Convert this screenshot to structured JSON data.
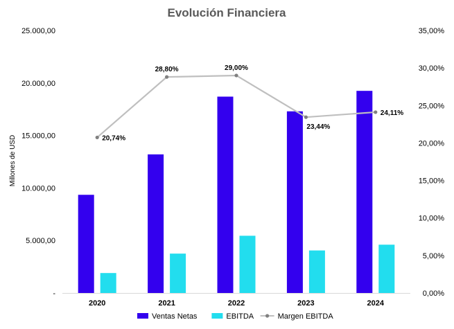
{
  "chart_data": {
    "type": "bar",
    "title": "Evolución Financiera",
    "ylabel": "Millones de USD",
    "ylabel_right": "",
    "categories": [
      "2020",
      "2021",
      "2022",
      "2023",
      "2024"
    ],
    "ylim": [
      0,
      25000
    ],
    "ylim_right": [
      0,
      35
    ],
    "yticks": [
      "-",
      "5.000,00",
      "10.000,00",
      "15.000,00",
      "20.000,00",
      "25.000,00"
    ],
    "yticks_right": [
      "0,00%",
      "5,00%",
      "10,00%",
      "15,00%",
      "20,00%",
      "25,00%",
      "30,00%",
      "35,00%"
    ],
    "grid": false,
    "legend_position": "bottom",
    "series": [
      {
        "name": "Ventas Netas",
        "kind": "bar",
        "axis": "left",
        "color": "#3300EE",
        "values": [
          9350,
          13200,
          18700,
          17300,
          19250
        ]
      },
      {
        "name": "EBITDA",
        "kind": "bar",
        "axis": "left",
        "color": "#22DDEE",
        "values": [
          1900,
          3750,
          5450,
          4050,
          4600
        ]
      },
      {
        "name": "Margen EBITDA",
        "kind": "line",
        "axis": "right",
        "color": "#BFBFBF",
        "marker_color": "#808080",
        "values": [
          20.74,
          28.8,
          29.0,
          23.44,
          24.11
        ],
        "labels": [
          "20,74%",
          "28,80%",
          "29,00%",
          "23,44%",
          "24,11%"
        ]
      }
    ]
  }
}
